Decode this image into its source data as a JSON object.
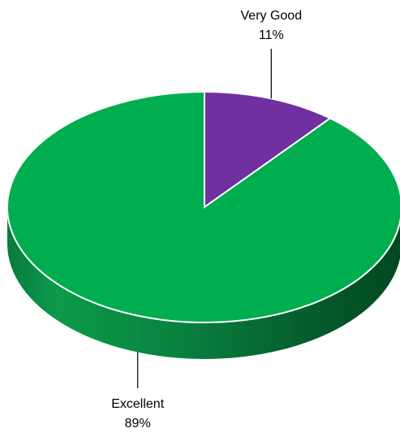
{
  "chart_data": {
    "type": "pie",
    "style": "3d",
    "title": "",
    "slices": [
      {
        "label": "Excellent",
        "value": 89,
        "value_label": "89%",
        "color": "#00ad4f"
      },
      {
        "label": "Very Good",
        "value": 11,
        "value_label": "11%",
        "color": "#7030a0"
      }
    ]
  }
}
